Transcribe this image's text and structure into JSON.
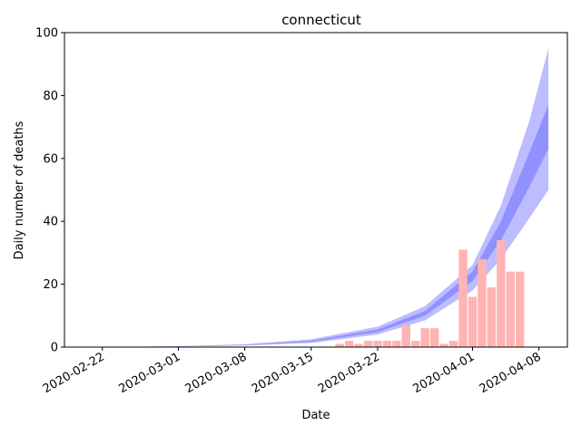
{
  "chart_data": {
    "type": "bar",
    "title": "connecticut",
    "xlabel": "Date",
    "ylabel": "Daily number of deaths",
    "xlim": [
      "2020-02-18",
      "2020-04-11"
    ],
    "ylim": [
      0,
      100
    ],
    "grid": false,
    "x_ticks": [
      "2020-02-22",
      "2020-03-01",
      "2020-03-08",
      "2020-03-15",
      "2020-03-22",
      "2020-04-01",
      "2020-04-08"
    ],
    "y_ticks": [
      0,
      20,
      40,
      60,
      80,
      100
    ],
    "bars": {
      "color": "#ffb3b3",
      "dates": [
        "2020-03-18",
        "2020-03-19",
        "2020-03-20",
        "2020-03-21",
        "2020-03-22",
        "2020-03-23",
        "2020-03-24",
        "2020-03-25",
        "2020-03-26",
        "2020-03-27",
        "2020-03-28",
        "2020-03-29",
        "2020-03-30",
        "2020-03-31",
        "2020-04-01",
        "2020-04-02",
        "2020-04-03",
        "2020-04-04",
        "2020-04-05",
        "2020-04-06"
      ],
      "values": [
        1,
        2,
        1,
        2,
        2,
        2,
        2,
        7,
        2,
        6,
        6,
        1,
        2,
        31,
        16,
        28,
        19,
        34,
        24,
        24
      ]
    },
    "bands": {
      "color": "#4040ff",
      "dates": [
        "2020-02-18",
        "2020-02-25",
        "2020-03-01",
        "2020-03-08",
        "2020-03-15",
        "2020-03-22",
        "2020-03-27",
        "2020-04-01",
        "2020-04-04",
        "2020-04-07",
        "2020-04-09"
      ],
      "outer_lower": [
        0.02,
        0.05,
        0.15,
        0.5,
        1.3,
        4.0,
        8.5,
        18,
        28,
        41,
        50
      ],
      "outer_upper": [
        0.04,
        0.1,
        0.3,
        0.9,
        2.5,
        6.5,
        13,
        26,
        45,
        72,
        95
      ],
      "inner_lower": [
        0.03,
        0.07,
        0.2,
        0.6,
        1.7,
        4.8,
        10,
        21,
        34,
        51,
        63
      ],
      "inner_upper": [
        0.03,
        0.08,
        0.25,
        0.75,
        2.0,
        5.6,
        11.5,
        24,
        40,
        62,
        77
      ]
    }
  }
}
